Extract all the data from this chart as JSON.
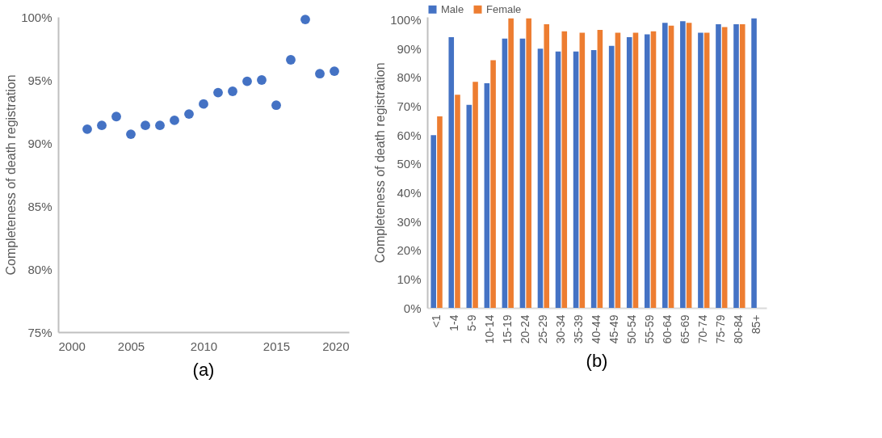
{
  "chart_data": [
    {
      "type": "scatter",
      "title": "(a)",
      "ylabel": "Completeness of death registration",
      "x": [
        2002,
        2003,
        2004,
        2005,
        2006,
        2007,
        2008,
        2009,
        2010,
        2011,
        2012,
        2013,
        2014,
        2015,
        2016,
        2017,
        2018,
        2019
      ],
      "series": [
        {
          "color": "#4472c4",
          "values": [
            91.1,
            91.4,
            92.1,
            90.7,
            91.4,
            91.4,
            91.8,
            92.3,
            93.1,
            94.0,
            94.1,
            94.9,
            95.0,
            93.0,
            96.6,
            99.8,
            95.5,
            95.7
          ]
        }
      ],
      "marker": "circle",
      "grid": false,
      "legend": false,
      "xlim": [
        2000,
        2020
      ],
      "xticks": [
        2000,
        2005,
        2010,
        2015,
        2020
      ],
      "ylim": [
        75,
        100
      ],
      "yticks": [
        {
          "value": 75,
          "label": "75%"
        },
        {
          "value": 80,
          "label": "80%"
        },
        {
          "value": 85,
          "label": "85%"
        },
        {
          "value": 90,
          "label": "90%"
        },
        {
          "value": 95,
          "label": "95%"
        },
        {
          "value": 100,
          "label": "100%"
        }
      ]
    },
    {
      "type": "bar",
      "title": "(b)",
      "ylabel": "Completeness of death registration",
      "categories": [
        "<1",
        "1-4",
        "5-9",
        "10-14",
        "15-19",
        "20-24",
        "25-29",
        "30-34",
        "35-39",
        "40-44",
        "45-49",
        "50-54",
        "55-59",
        "60-64",
        "65-69",
        "70-74",
        "75-79",
        "80-84",
        "85+"
      ],
      "series": [
        {
          "name": "Male",
          "color": "#4472c4",
          "values": [
            60,
            94,
            70.5,
            78,
            93.5,
            93.5,
            90,
            89,
            89,
            89.5,
            91,
            94,
            95,
            99,
            99.5,
            95.5,
            98.5,
            98.5,
            100.5
          ]
        },
        {
          "name": "Female",
          "color": "#ed7d31",
          "values": [
            66.5,
            74,
            78.5,
            86,
            100.5,
            100.5,
            98.5,
            96,
            95.5,
            96.5,
            95.5,
            95.5,
            96,
            98,
            99,
            95.5,
            97.5,
            98.5,
            null
          ]
        }
      ],
      "grid": false,
      "legend": "top",
      "ylim": [
        0,
        101
      ],
      "yticks": [
        {
          "value": 0,
          "label": "0%"
        },
        {
          "value": 10,
          "label": "10%"
        },
        {
          "value": 20,
          "label": "20%"
        },
        {
          "value": 30,
          "label": "30%"
        },
        {
          "value": 40,
          "label": "40%"
        },
        {
          "value": 50,
          "label": "50%"
        },
        {
          "value": 60,
          "label": "60%"
        },
        {
          "value": 70,
          "label": "70%"
        },
        {
          "value": 80,
          "label": "80%"
        },
        {
          "value": 90,
          "label": "90%"
        },
        {
          "value": 100,
          "label": "100%"
        }
      ]
    }
  ]
}
